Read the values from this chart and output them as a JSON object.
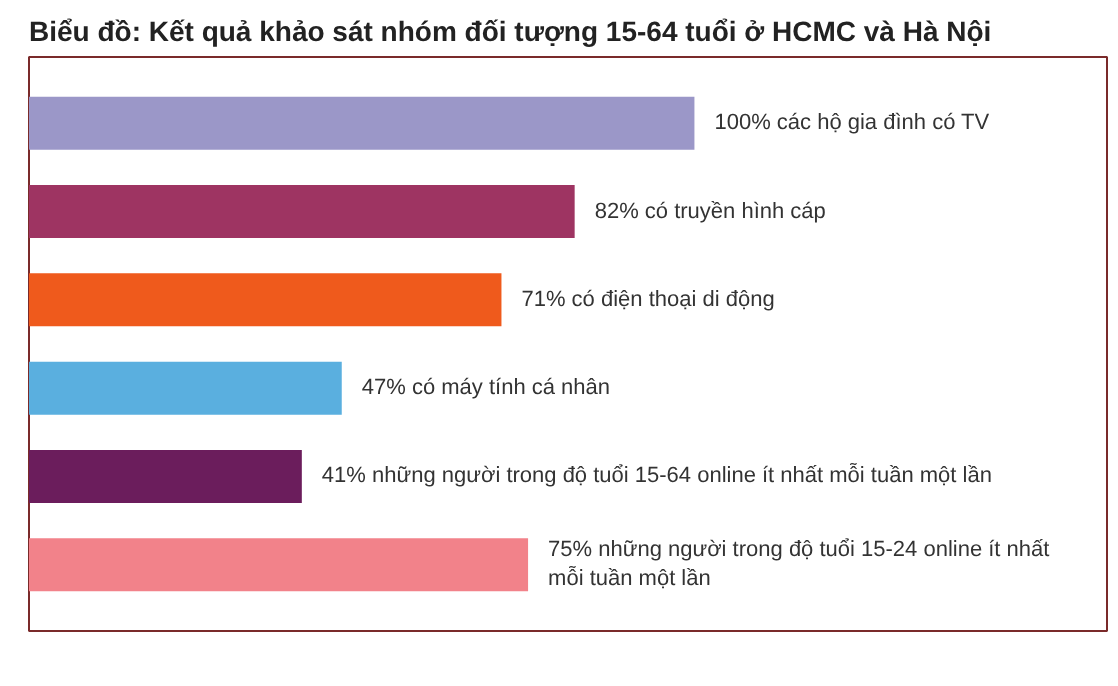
{
  "chart_data": {
    "type": "bar",
    "orientation": "horizontal",
    "title": "Biểu đồ: Kết quả khảo sát nhóm đối tượng 15-64 tuổi ở HCMC và Hà Nội",
    "categories": [
      null,
      null,
      null,
      null,
      null,
      null
    ],
    "values": [
      100,
      82,
      71,
      47,
      41,
      75
    ],
    "colors": [
      "#9b97c8",
      "#9e3462",
      "#ef5a1c",
      "#5aafdf",
      "#6b1d5c",
      "#f2828a"
    ],
    "value_labels": [
      "100% các hộ gia đình có TV",
      "82% có truyền hình cáp",
      "71% có điện thoại di động",
      "47% có máy tính cá nhân",
      "41% những người trong độ tuổi 15-64 online ít nhất mỗi tuần một lần",
      "75% những người trong độ tuổi 15-24 online ít nhất\nmỗi tuần một lần"
    ]
  }
}
